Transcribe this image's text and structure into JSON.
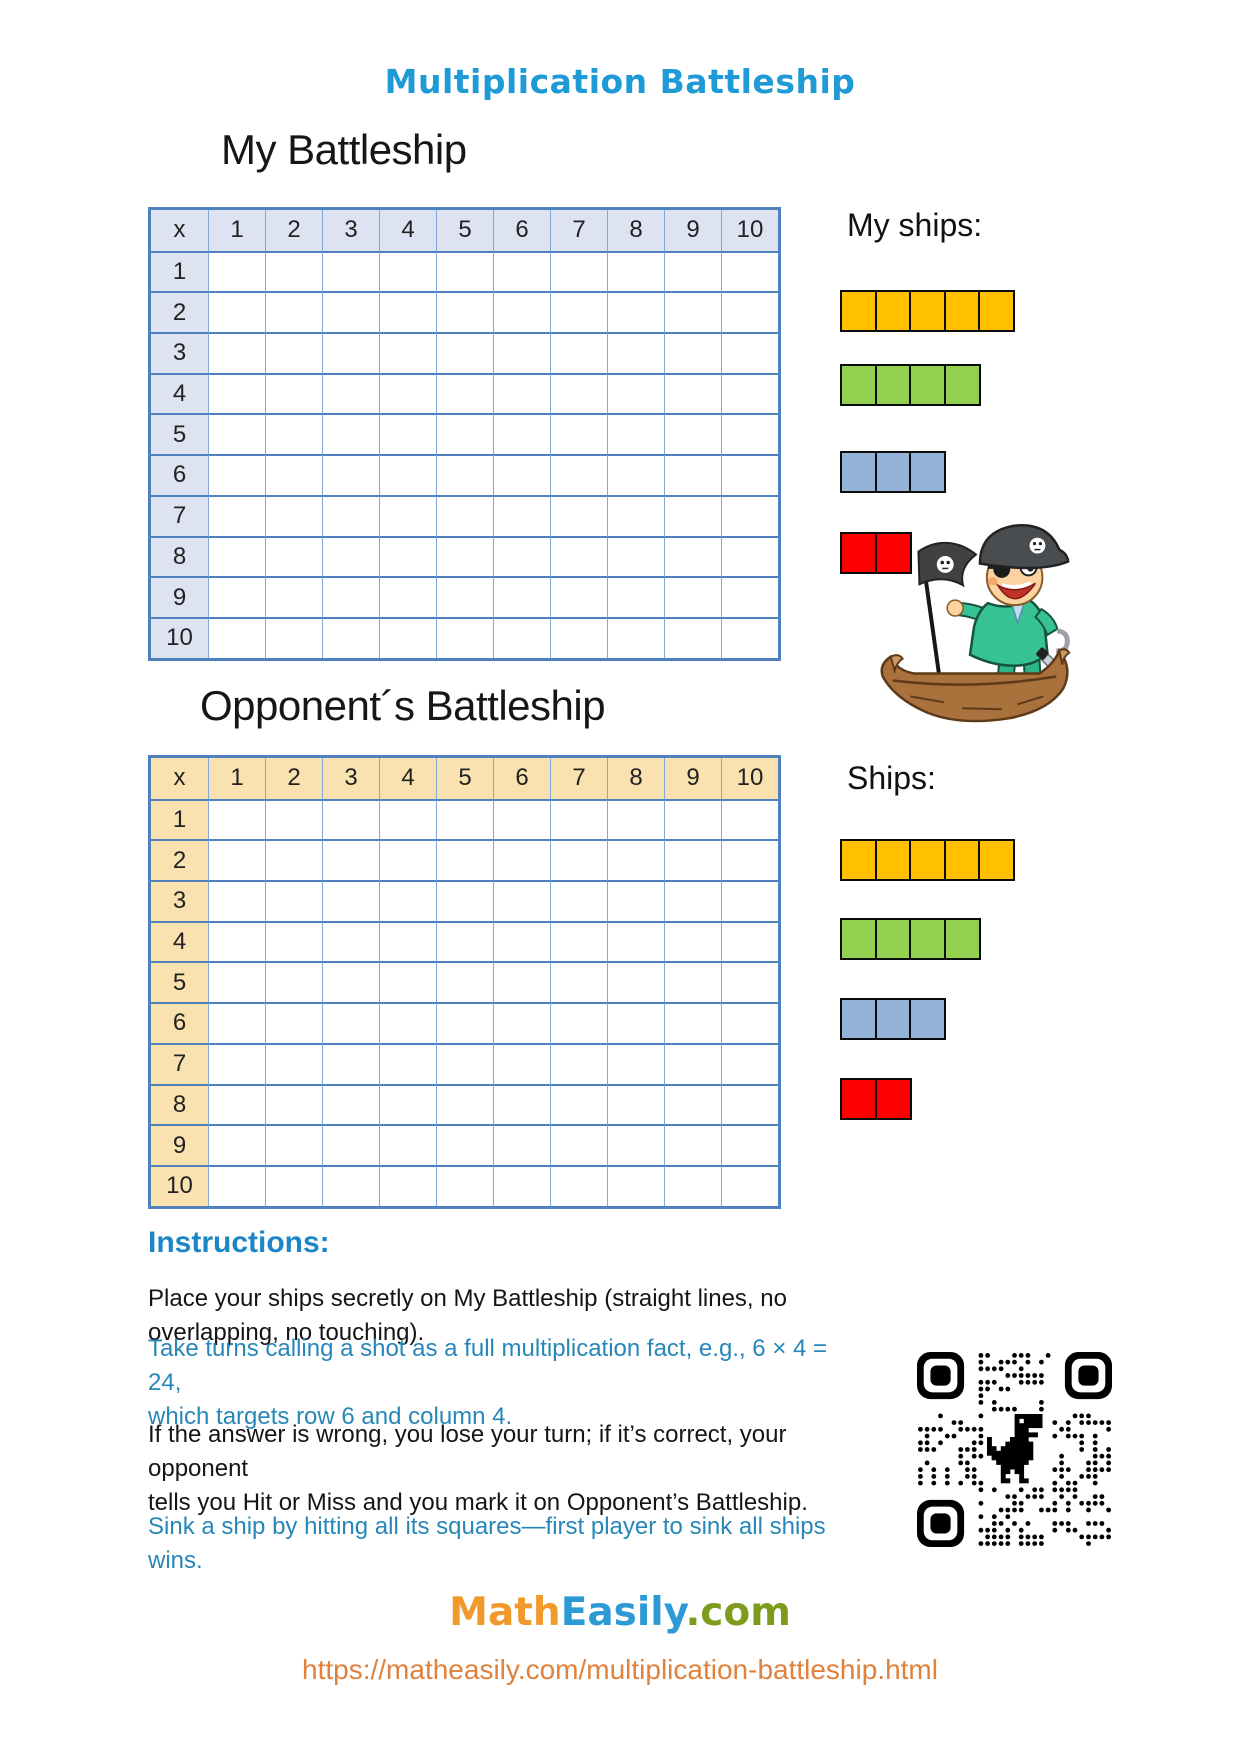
{
  "title": "Multiplication Battleship",
  "boards": [
    {
      "heading": "My Battleship",
      "corner_label": "x",
      "col_headers": [
        "1",
        "2",
        "3",
        "4",
        "5",
        "6",
        "7",
        "8",
        "9",
        "10"
      ],
      "row_headers": [
        "1",
        "2",
        "3",
        "4",
        "5",
        "6",
        "7",
        "8",
        "9",
        "10"
      ],
      "header_fill": "#DEE3F1",
      "ships_label": "My ships:"
    },
    {
      "heading": "Opponent´s Battleship",
      "corner_label": "x",
      "col_headers": [
        "1",
        "2",
        "3",
        "4",
        "5",
        "6",
        "7",
        "8",
        "9",
        "10"
      ],
      "row_headers": [
        "1",
        "2",
        "3",
        "4",
        "5",
        "6",
        "7",
        "8",
        "9",
        "10"
      ],
      "header_fill": "#FAE2B0",
      "ships_label": "Ships:"
    }
  ],
  "ships": [
    {
      "name": "ship-5",
      "cells": 5,
      "color": "#FFC000"
    },
    {
      "name": "ship-4",
      "cells": 4,
      "color": "#92D050"
    },
    {
      "name": "ship-3",
      "cells": 3,
      "color": "#95B3D7"
    },
    {
      "name": "ship-2",
      "cells": 2,
      "color": "#FF0000"
    }
  ],
  "instructions": {
    "heading": "Instructions:",
    "paragraphs": [
      {
        "text": "Place your ships secretly on My Battleship (straight lines, no overlapping, no touching).",
        "style": "black"
      },
      {
        "text": "Take turns calling a shot as a full multiplication fact, e.g., 6 × 4 = 24,\nwhich targets row 6 and column 4.",
        "style": "blue"
      },
      {
        "text": "If the answer is wrong, you lose your turn; if it’s correct, your opponent\ntells you Hit or Miss and you mark it on Opponent’s Battleship.",
        "style": "black"
      },
      {
        "text": "Sink a ship by hitting all its squares—first player to sink all ships wins.",
        "style": "blue"
      }
    ]
  },
  "footer": {
    "brand": [
      {
        "text": "Math",
        "color": "#F1992B"
      },
      {
        "text": "Easily",
        "color": "#2D9AD5"
      },
      {
        "text": ".com",
        "color": "#7E9B1E"
      }
    ],
    "url": "https://matheasily.com/multiplication-battleship.html"
  },
  "icons": {
    "qr_code": "qr-code-with-dino-center",
    "pirate": "pirate-boy-on-boat-illustration"
  },
  "colors": {
    "title_blue": "#1E9BD7",
    "heading_blue": "#1C86C8",
    "body_blue": "#2787B8",
    "grid_border": "#4E81BD",
    "url_orange": "#E0813C"
  }
}
